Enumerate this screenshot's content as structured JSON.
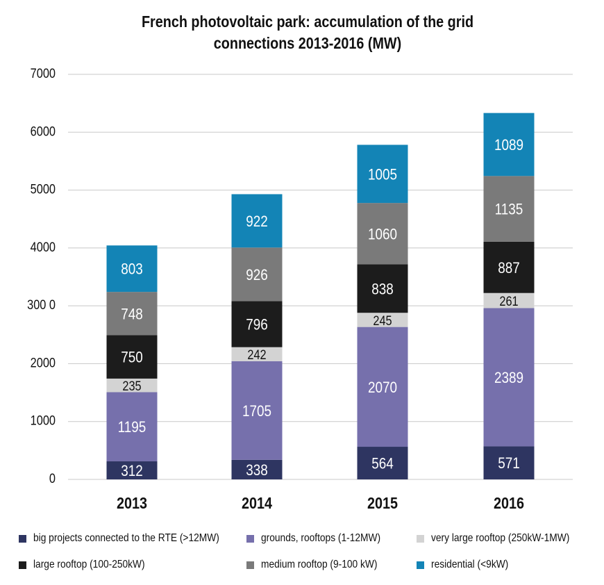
{
  "chart_data": {
    "type": "bar",
    "stacked": true,
    "title_lines": [
      "French photovoltaic park: accumulation of the grid",
      "connections 2013-2016 (MW)"
    ],
    "categories": [
      "2013",
      "2014",
      "2015",
      "2016"
    ],
    "ylim": [
      0,
      7000
    ],
    "yticks": [
      "0",
      "1000",
      "2000",
      "300 0",
      "4000",
      "5000",
      "6000",
      "7000"
    ],
    "grid": true,
    "legend_position": "bottom",
    "series": [
      {
        "name": "big projects connected to the RTE (>12MW)",
        "color": "#2e3561",
        "label_color": "#ffffff",
        "values": [
          312,
          338,
          564,
          571
        ]
      },
      {
        "name": "grounds, rooftops (1-12MW)",
        "color": "#7670ac",
        "label_color": "#ffffff",
        "values": [
          1195,
          1705,
          2070,
          2389
        ]
      },
      {
        "name": "very large rooftop (250kW-1MW)",
        "color": "#d3d3d3",
        "label_color": "#111111",
        "values": [
          235,
          242,
          245,
          261
        ]
      },
      {
        "name": "large rooftop (100-250kW)",
        "color": "#1c1c1c",
        "label_color": "#ffffff",
        "values": [
          750,
          796,
          838,
          887
        ]
      },
      {
        "name": "medium rooftop (9-100 kW)",
        "color": "#7a7a7a",
        "label_color": "#ffffff",
        "values": [
          748,
          926,
          1060,
          1135
        ]
      },
      {
        "name": "residential (<9kW)",
        "color": "#1384b6",
        "label_color": "#ffffff",
        "values": [
          803,
          922,
          1005,
          1089
        ]
      }
    ]
  }
}
